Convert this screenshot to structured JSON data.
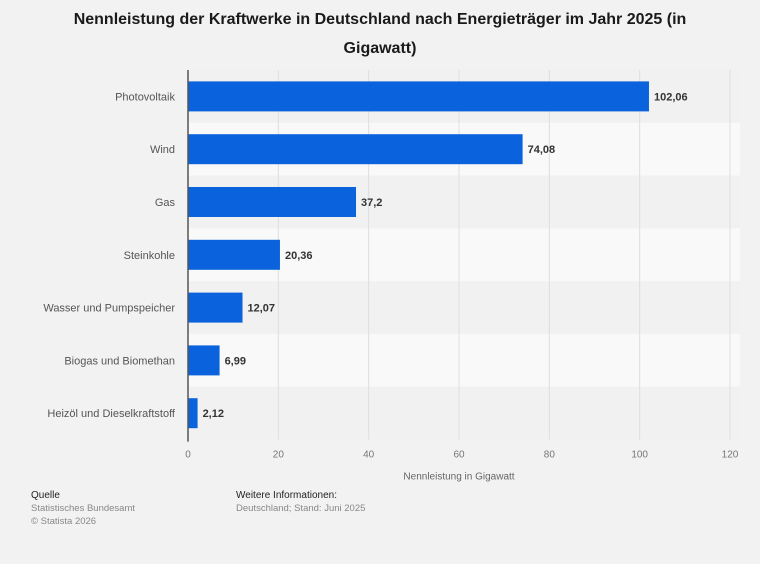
{
  "chart_data": {
    "type": "bar",
    "orientation": "horizontal",
    "title": "Nennleistung der Kraftwerke in Deutschland nach Energieträger im Jahr 2025 (in Gigawatt)",
    "categories": [
      "Photovoltaik",
      "Wind",
      "Gas",
      "Steinkohle",
      "Wasser und Pumpspeicher",
      "Biogas und Biomethan",
      "Heizöl und Dieselkraftstoff"
    ],
    "values": [
      102.06,
      74.08,
      37.2,
      20.36,
      12.07,
      6.99,
      2.12
    ],
    "value_labels": [
      "102,06",
      "74,08",
      "37,2",
      "20,36",
      "12,07",
      "6,99",
      "2,12"
    ],
    "xlabel": "Nennleistung in Gigawatt",
    "ylabel": "",
    "xlim": [
      0,
      120
    ],
    "xticks": [
      0,
      20,
      40,
      60,
      80,
      100,
      120
    ],
    "grid": true,
    "bar_color": "#0a62dc",
    "legend": "none"
  },
  "footer": {
    "source_heading": "Quelle",
    "source_name": "Statistisches Bundesamt",
    "copyright": "© Statista 2026",
    "info_heading": "Weitere Informationen:",
    "info_text": "Deutschland; Stand: Juni 2025"
  }
}
